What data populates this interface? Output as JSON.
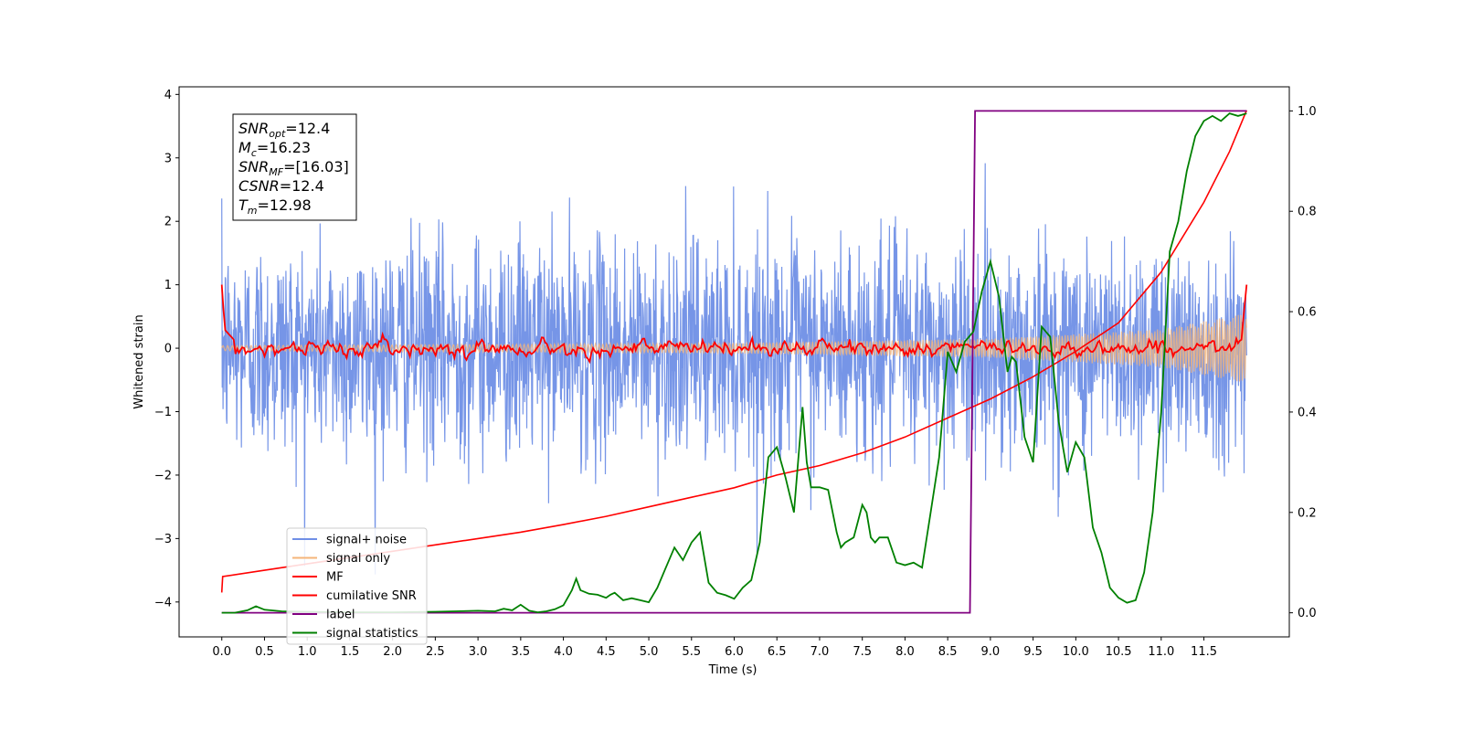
{
  "chart_data": {
    "type": "line",
    "xlabel": "Time (s)",
    "ylabel": "Whitened strain",
    "xlim": [
      -0.5,
      12.5
    ],
    "ylim": [
      -4.55,
      4.12
    ],
    "y2lim": [
      -0.048,
      1.048
    ],
    "xticks": [
      "0.0",
      "0.5",
      "1.0",
      "1.5",
      "2.0",
      "2.5",
      "3.0",
      "3.5",
      "4.0",
      "4.5",
      "5.0",
      "5.5",
      "6.0",
      "6.5",
      "7.0",
      "7.5",
      "8.0",
      "8.5",
      "9.0",
      "9.5",
      "10.0",
      "10.5",
      "11.0",
      "11.5"
    ],
    "yticks": [
      "−4",
      "−3",
      "−2",
      "−1",
      "0",
      "1",
      "2",
      "3",
      "4"
    ],
    "y2ticks": [
      "0.0",
      "0.2",
      "0.4",
      "0.6",
      "0.8",
      "1.0"
    ],
    "annotations": [
      {
        "sym": "SNR",
        "sub": "opt",
        "val": "=12.4"
      },
      {
        "sym": "M",
        "sub": "c",
        "val": "=16.23"
      },
      {
        "sym": "SNR",
        "sub": "MF",
        "val": "=[16.03]"
      },
      {
        "sym": "CSNR",
        "sub": "",
        "val": "=12.4"
      },
      {
        "sym": "T",
        "sub": "m",
        "val": "=12.98"
      }
    ],
    "series": [
      {
        "name": "signal+ noise",
        "color": "#6f8fe6",
        "axis": "left",
        "x_range": [
          0,
          12.0
        ],
        "note_amplitude": [
          -2.6,
          2.6
        ]
      },
      {
        "name": "signal only",
        "color": "#f5b57a",
        "axis": "left",
        "x_range": [
          0,
          12.0
        ],
        "envelope": [
          [
            0,
            0.04
          ],
          [
            6,
            0.08
          ],
          [
            9,
            0.15
          ],
          [
            11,
            0.3
          ],
          [
            12,
            0.55
          ]
        ]
      },
      {
        "name": "MF",
        "color": "#ff0000",
        "axis": "left",
        "x_range": [
          0,
          12.0
        ],
        "level": 0.0
      },
      {
        "name": "cumilative SNR",
        "color": "#ff0000",
        "axis": "left",
        "x": [
          0,
          0.01,
          0.5,
          1.0,
          1.5,
          2.0,
          2.5,
          3.0,
          3.5,
          4.0,
          4.5,
          5.0,
          5.5,
          6.0,
          6.5,
          7.0,
          7.5,
          8.0,
          8.5,
          9.0,
          9.5,
          10.0,
          10.5,
          11.0,
          11.5,
          11.8,
          12.0
        ],
        "y": [
          -3.85,
          -3.6,
          -3.5,
          -3.4,
          -3.3,
          -3.2,
          -3.1,
          -3.0,
          -2.9,
          -2.78,
          -2.65,
          -2.5,
          -2.35,
          -2.2,
          -2.0,
          -1.85,
          -1.65,
          -1.4,
          -1.1,
          -0.8,
          -0.45,
          -0.05,
          0.4,
          1.2,
          2.3,
          3.1,
          3.75
        ]
      },
      {
        "name": "label",
        "color": "#800080",
        "axis": "right",
        "x": [
          0,
          8.76,
          8.82,
          12.0
        ],
        "y": [
          0,
          0,
          1,
          1
        ]
      },
      {
        "name": "signal statistics",
        "color": "#008000",
        "axis": "right",
        "x": [
          0,
          0.15,
          0.3,
          0.4,
          0.5,
          0.7,
          1.0,
          1.5,
          2.0,
          2.5,
          3.0,
          3.2,
          3.3,
          3.4,
          3.5,
          3.6,
          3.7,
          3.8,
          3.9,
          4.0,
          4.1,
          4.15,
          4.2,
          4.3,
          4.4,
          4.5,
          4.55,
          4.6,
          4.7,
          4.8,
          4.9,
          5.0,
          5.1,
          5.2,
          5.3,
          5.4,
          5.5,
          5.6,
          5.7,
          5.8,
          5.9,
          6.0,
          6.1,
          6.2,
          6.3,
          6.4,
          6.5,
          6.55,
          6.6,
          6.7,
          6.8,
          6.85,
          6.9,
          7.0,
          7.1,
          7.2,
          7.25,
          7.3,
          7.4,
          7.5,
          7.55,
          7.6,
          7.65,
          7.7,
          7.8,
          7.9,
          8.0,
          8.1,
          8.2,
          8.3,
          8.4,
          8.5,
          8.6,
          8.7,
          8.8,
          8.9,
          9.0,
          9.1,
          9.2,
          9.25,
          9.3,
          9.4,
          9.5,
          9.6,
          9.7,
          9.8,
          9.9,
          10.0,
          10.1,
          10.2,
          10.3,
          10.4,
          10.5,
          10.6,
          10.7,
          10.8,
          10.9,
          11.0,
          11.1,
          11.2,
          11.3,
          11.4,
          11.5,
          11.6,
          11.7,
          11.8,
          11.9,
          12.0
        ],
        "y": [
          0,
          0,
          0.005,
          0.013,
          0.006,
          0.003,
          0.002,
          0.001,
          0.001,
          0.002,
          0.004,
          0.003,
          0.008,
          0.005,
          0.016,
          0.004,
          0.001,
          0.003,
          0.007,
          0.015,
          0.045,
          0.068,
          0.045,
          0.038,
          0.036,
          0.03,
          0.036,
          0.04,
          0.025,
          0.029,
          0.025,
          0.021,
          0.05,
          0.09,
          0.13,
          0.105,
          0.14,
          0.16,
          0.06,
          0.04,
          0.035,
          0.028,
          0.05,
          0.065,
          0.14,
          0.31,
          0.33,
          0.3,
          0.27,
          0.2,
          0.41,
          0.3,
          0.25,
          0.25,
          0.245,
          0.16,
          0.13,
          0.14,
          0.15,
          0.215,
          0.2,
          0.15,
          0.14,
          0.15,
          0.15,
          0.1,
          0.095,
          0.1,
          0.09,
          0.2,
          0.31,
          0.52,
          0.48,
          0.54,
          0.56,
          0.64,
          0.7,
          0.63,
          0.48,
          0.51,
          0.5,
          0.35,
          0.3,
          0.57,
          0.55,
          0.38,
          0.28,
          0.34,
          0.31,
          0.17,
          0.12,
          0.05,
          0.03,
          0.02,
          0.025,
          0.08,
          0.2,
          0.4,
          0.72,
          0.78,
          0.88,
          0.95,
          0.98,
          0.99,
          0.98,
          0.995,
          0.99,
          0.995
        ]
      }
    ],
    "legend_position": "lower-left"
  }
}
